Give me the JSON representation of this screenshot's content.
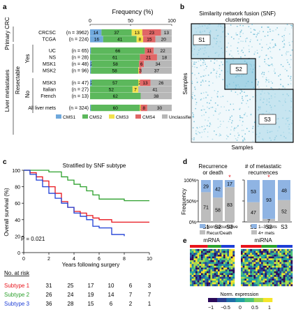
{
  "panels": {
    "a": "a",
    "b": "b",
    "c": "c",
    "d": "d",
    "e": "e"
  },
  "panel_a": {
    "title": "Frequency (%)",
    "ticks": [
      "0",
      "50",
      "100"
    ],
    "groups": [
      {
        "label": "Primary CRC",
        "sub": ""
      },
      {
        "label": "Liver metastases",
        "sub": ""
      }
    ],
    "resectable_label": "Resectable",
    "yes_label": "Yes",
    "no_label": "No",
    "rows": [
      {
        "name": "CRCSC",
        "n": "(n = 3962)",
        "vals": [
          14,
          37,
          13,
          23,
          13
        ],
        "labels": [
          "14",
          "37",
          "13",
          "23",
          "13"
        ]
      },
      {
        "name": "TCGA",
        "n": "(n = 224)",
        "vals": [
          16,
          41,
          8,
          15,
          20
        ],
        "labels": [
          "16",
          "41",
          "8",
          "15",
          "20"
        ]
      },
      {
        "name": "UC",
        "n": "(n = 65)",
        "vals": [
          1,
          66,
          0,
          11,
          22
        ],
        "labels": [
          "1",
          "66",
          "",
          "11",
          "22"
        ]
      },
      {
        "name": "NS",
        "n": "(n = 28)",
        "vals": [
          0,
          61,
          0,
          21,
          18
        ],
        "labels": [
          "",
          "61",
          "",
          "21",
          "18"
        ]
      },
      {
        "name": "MSK1",
        "n": "(n = 48)",
        "vals": [
          2,
          58,
          0,
          6,
          34
        ],
        "labels": [
          "2",
          "58",
          "",
          "6",
          "34"
        ]
      },
      {
        "name": "MSK2",
        "n": "(n = 96)",
        "vals": [
          1,
          58,
          1,
          3,
          37
        ],
        "labels": [
          "1",
          "58",
          "1",
          "3",
          "37"
        ]
      },
      {
        "name": "MSK3",
        "n": "(n = 47)",
        "vals": [
          2,
          57,
          2,
          13,
          26
        ],
        "labels": [
          "2",
          "57",
          "2",
          "13",
          "26"
        ]
      },
      {
        "name": "Italian",
        "n": "(n = 27)",
        "vals": [
          0,
          52,
          7,
          0,
          41
        ],
        "labels": [
          "",
          "52",
          "7",
          "",
          "41"
        ]
      },
      {
        "name": "French",
        "n": "(n = 13)",
        "vals": [
          0,
          62,
          0,
          0,
          38
        ],
        "labels": [
          "",
          "62",
          "",
          "",
          "38"
        ]
      },
      {
        "name": "All liver mets",
        "n": "(n = 324)",
        "vals": [
          1,
          60,
          1,
          8,
          30
        ],
        "labels": [
          "1",
          "60",
          "1",
          "8",
          "30"
        ]
      }
    ],
    "legend": [
      "CMS1",
      "CMS2",
      "CMS3",
      "CMS4",
      "Unclassified"
    ],
    "colors": [
      "#6fa8dc",
      "#5cb85c",
      "#f2e14c",
      "#e06666",
      "#b7b7b7"
    ]
  },
  "panel_b": {
    "title": "Similarity network fusion (SNF)",
    "subtitle": "clustering",
    "xlabel": "Samples",
    "ylabel": "Samples",
    "clusters": [
      "S1",
      "S2",
      "S3"
    ]
  },
  "chart_data": {
    "type": "line",
    "title": "Stratified by SNF subtype",
    "xlabel": "Years following surgery",
    "ylabel": "Overall survival (%)",
    "xlim": [
      0,
      10
    ],
    "ylim": [
      0,
      100
    ],
    "xticks": [
      "0",
      "2",
      "4",
      "6",
      "8",
      "10"
    ],
    "yticks": [
      "0",
      "20",
      "40",
      "60",
      "80",
      "100"
    ],
    "annotation": "P = 0.021",
    "series": [
      {
        "name": "Subtype 1",
        "color": "#e8141c",
        "x": [
          0,
          0.5,
          1,
          1.5,
          2,
          2.5,
          3,
          3.5,
          4,
          4.5,
          5,
          5.5,
          6,
          7,
          8,
          10
        ],
        "y": [
          100,
          97,
          92,
          87,
          80,
          72,
          62,
          55,
          50,
          48,
          45,
          42,
          40,
          37,
          37,
          37
        ]
      },
      {
        "name": "Subtype 2",
        "color": "#2ca02c",
        "x": [
          0,
          1,
          2,
          3,
          3.5,
          4,
          4.5,
          5,
          5.5,
          6,
          8,
          10
        ],
        "y": [
          100,
          100,
          98,
          92,
          88,
          83,
          80,
          75,
          70,
          65,
          63,
          63
        ]
      },
      {
        "name": "Subtype 3",
        "color": "#1f3fd6",
        "x": [
          0,
          0.5,
          1,
          1.5,
          2,
          2.5,
          3,
          3.5,
          4,
          4.5,
          5,
          5.5,
          6,
          7,
          8
        ],
        "y": [
          100,
          95,
          88,
          80,
          72,
          66,
          60,
          55,
          48,
          44,
          40,
          32,
          30,
          22,
          20
        ]
      }
    ]
  },
  "risk": {
    "title": "No. at risk",
    "rows": [
      {
        "name": "Subtype 1",
        "color": "#e8141c",
        "vals": [
          "31",
          "25",
          "17",
          "10",
          "6",
          "3"
        ]
      },
      {
        "name": "Subtype 2",
        "color": "#2ca02c",
        "vals": [
          "26",
          "24",
          "19",
          "14",
          "7",
          "7"
        ]
      },
      {
        "name": "Subtype 3",
        "color": "#1f3fd6",
        "vals": [
          "36",
          "28",
          "15",
          "6",
          "2",
          "1"
        ]
      }
    ]
  },
  "panel_d": {
    "ylabel": "Frequency",
    "yticks": [
      "0%",
      "50%",
      "100%"
    ],
    "left": {
      "title1": "Recurrence",
      "title2": "or death",
      "cats": [
        "S1",
        "S2",
        "S3"
      ],
      "top": [
        29,
        42,
        17
      ],
      "bottom": [
        71,
        58,
        83
      ],
      "top_labels": [
        "29",
        "42",
        "17"
      ],
      "bottom_labels": [
        "71",
        "58",
        "83"
      ],
      "star": "*",
      "legend": [
        "Non-recur/Alive",
        "Recur/Death"
      ]
    },
    "right": {
      "title": "# of metastatic",
      "title2": "recurrences",
      "cats": [
        "S1",
        "S2",
        "S3"
      ],
      "top": [
        53,
        93,
        48
      ],
      "bottom": [
        47,
        7,
        52
      ],
      "top_labels": [
        "53",
        "93",
        "48"
      ],
      "bottom_labels": [
        "47",
        "7",
        "52"
      ],
      "star": "*",
      "legend": [
        "1–3 mets",
        "4+ mets"
      ]
    },
    "colors": {
      "top": "#8fb4e3",
      "bottom": "#bdbdbd"
    }
  },
  "panel_e": {
    "mrna": "mRNA",
    "mirna": "miRNA",
    "scale_title": "Norm. expression",
    "scale_ticks": [
      "−1",
      "−0.5",
      "0",
      "0.5",
      "1"
    ]
  }
}
